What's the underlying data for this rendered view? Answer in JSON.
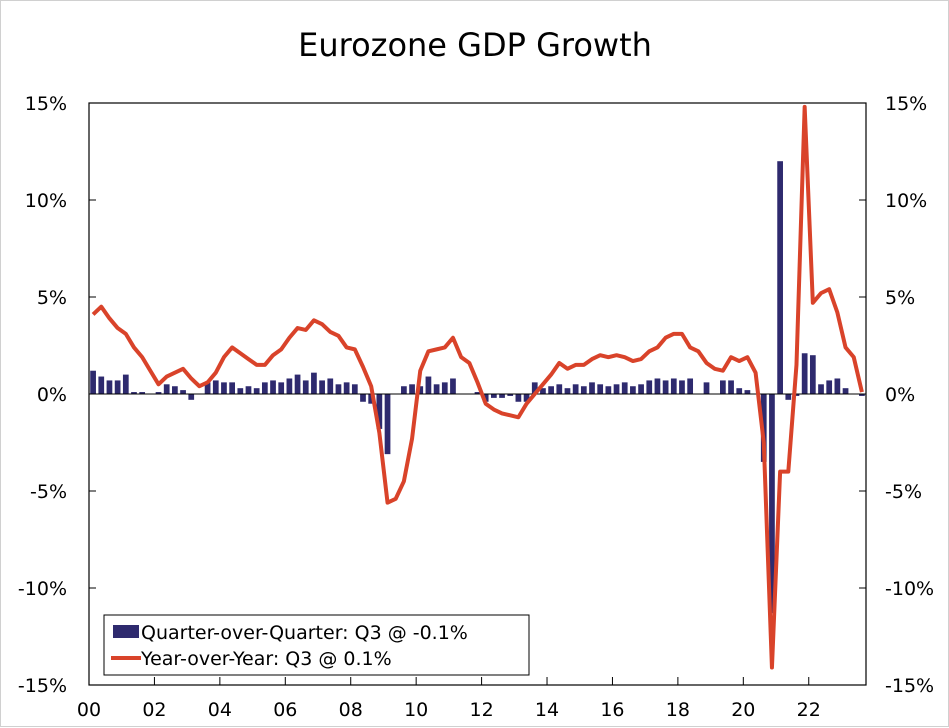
{
  "chart_data": {
    "type": "bar+line",
    "title": "Eurozone GDP Growth",
    "xlabel": "",
    "ylabel": "",
    "ylim": [
      -15,
      15
    ],
    "y_ticks": [
      15,
      10,
      5,
      0,
      -5,
      -10,
      -15
    ],
    "y_tick_labels": [
      "15%",
      "10%",
      "5%",
      "0%",
      "-5%",
      "-10%",
      "-15%"
    ],
    "x_tick_labels": [
      "00",
      "02",
      "04",
      "06",
      "08",
      "10",
      "12",
      "14",
      "16",
      "18",
      "20",
      "22"
    ],
    "x_tick_years": [
      2000,
      2002,
      2004,
      2006,
      2008,
      2010,
      2012,
      2014,
      2016,
      2018,
      2020,
      2022
    ],
    "start_year": 2000,
    "quarters": 95,
    "legend_position": "bottom-left",
    "colors": {
      "bars": "#2e2a6e",
      "line": "#d9432a",
      "axis": "#000000"
    },
    "series": [
      {
        "name": "Quarter-over-Quarter",
        "legend_label": "Quarter-over-Quarter: Q3 @ -0.1%",
        "type": "bar",
        "values": [
          1.2,
          0.9,
          0.7,
          0.7,
          1.0,
          0.1,
          0.1,
          0.0,
          0.1,
          0.5,
          0.4,
          0.2,
          -0.3,
          0.0,
          0.6,
          0.7,
          0.6,
          0.6,
          0.3,
          0.4,
          0.3,
          0.6,
          0.7,
          0.6,
          0.8,
          1.0,
          0.7,
          1.1,
          0.7,
          0.8,
          0.5,
          0.6,
          0.5,
          -0.4,
          -0.5,
          -1.8,
          -3.1,
          0.0,
          0.4,
          0.5,
          0.4,
          0.9,
          0.5,
          0.6,
          0.8,
          0.0,
          0.0,
          0.1,
          -0.4,
          -0.2,
          -0.2,
          -0.1,
          -0.4,
          -0.4,
          0.6,
          0.3,
          0.4,
          0.5,
          0.3,
          0.5,
          0.4,
          0.6,
          0.5,
          0.4,
          0.5,
          0.6,
          0.4,
          0.5,
          0.7,
          0.8,
          0.7,
          0.8,
          0.7,
          0.8,
          0.0,
          0.6,
          0.0,
          0.7,
          0.7,
          0.3,
          0.2,
          0.0,
          -3.5,
          -11.3,
          12.0,
          -0.3,
          -0.1,
          2.1,
          2.0,
          0.5,
          0.7,
          0.8,
          0.3,
          0.0,
          -0.1
        ]
      },
      {
        "name": "Year-over-Year",
        "legend_label": "Year-over-Year: Q3 @ 0.1%",
        "type": "line",
        "values": [
          4.1,
          4.5,
          3.9,
          3.4,
          3.1,
          2.4,
          1.9,
          1.2,
          0.5,
          0.9,
          1.1,
          1.3,
          0.8,
          0.4,
          0.6,
          1.1,
          1.9,
          2.4,
          2.1,
          1.8,
          1.5,
          1.5,
          2.0,
          2.3,
          2.9,
          3.4,
          3.3,
          3.8,
          3.6,
          3.2,
          3.0,
          2.4,
          2.3,
          1.4,
          0.4,
          -2.0,
          -5.6,
          -5.4,
          -4.5,
          -2.3,
          1.2,
          2.2,
          2.3,
          2.4,
          2.9,
          1.9,
          1.6,
          0.6,
          -0.5,
          -0.8,
          -1.0,
          -1.1,
          -1.2,
          -0.5,
          0.0,
          0.5,
          1.0,
          1.6,
          1.3,
          1.5,
          1.5,
          1.8,
          2.0,
          1.9,
          2.0,
          1.9,
          1.7,
          1.8,
          2.2,
          2.4,
          2.9,
          3.1,
          3.1,
          2.4,
          2.2,
          1.6,
          1.3,
          1.2,
          1.9,
          1.7,
          1.9,
          1.1,
          -2.5,
          -14.1,
          -4.0,
          -4.0,
          1.5,
          14.8,
          4.7,
          5.2,
          5.4,
          4.2,
          2.4,
          1.9,
          0.1
        ]
      }
    ]
  }
}
